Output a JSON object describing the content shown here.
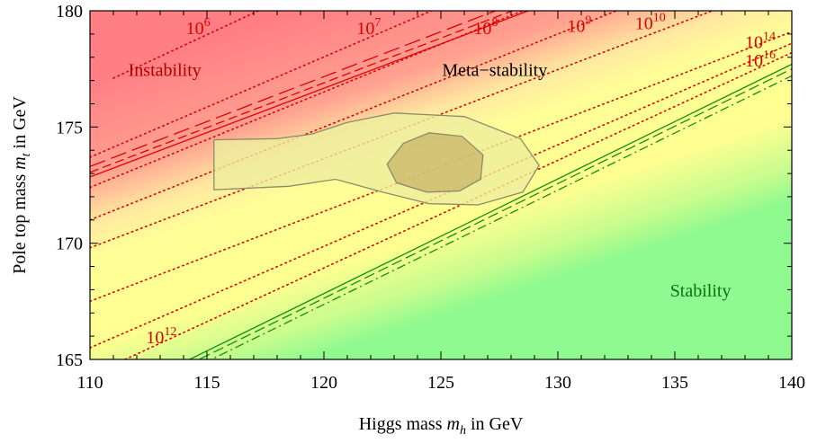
{
  "chart_data": {
    "type": "line",
    "xlabel": {
      "text": "Higgs mass ",
      "var": "m",
      "sub": "h",
      "unit": " in GeV"
    },
    "ylabel": {
      "text": "Pole top mass ",
      "var": "m",
      "sub": "t",
      "unit": " in GeV"
    },
    "xlim": [
      110,
      140
    ],
    "ylim": [
      165,
      180
    ],
    "xticks": [
      110,
      115,
      120,
      125,
      130,
      135,
      140
    ],
    "yticks": [
      165,
      170,
      175,
      180
    ],
    "grid": false,
    "regions": [
      {
        "label": "Instability",
        "color": "#b00000"
      },
      {
        "label": "Meta−stability",
        "color": "#000000"
      },
      {
        "label": "Stability",
        "color": "#107010"
      }
    ],
    "colors": {
      "instability": "#ff7f85",
      "metastability": "#ffff96",
      "stability": "#8ffa8f",
      "scale_lines": "#e00000",
      "boundary_instability": "#e00000",
      "boundary_stability": "#109010",
      "ellipse_fill": "#c8b46a",
      "ellipse_edge": "#8c8c6a"
    },
    "instability_boundary": {
      "solid": [
        [
          110,
          172.85
        ],
        [
          140,
          184.3
        ]
      ],
      "dashed": [
        [
          110,
          173.05
        ],
        [
          140,
          184.6
        ]
      ],
      "longdash": [
        [
          110,
          173.3
        ],
        [
          140,
          184.9
        ]
      ]
    },
    "stability_boundary": {
      "solid": [
        [
          110,
          162.9
        ],
        [
          140,
          177.7
        ]
      ],
      "dashed": [
        [
          110,
          162.7
        ],
        [
          140,
          177.5
        ]
      ],
      "dotdash": [
        [
          110,
          162.45
        ],
        [
          140,
          177.2
        ]
      ]
    },
    "scale_lines": [
      {
        "base": "10",
        "exp": "6",
        "points": [
          [
            111.0,
            177.1
          ],
          [
            117.2,
            180.0
          ]
        ]
      },
      {
        "base": "10",
        "exp": "7",
        "points": [
          [
            110.0,
            173.7
          ],
          [
            124.6,
            180.0
          ]
        ]
      },
      {
        "base": "10",
        "exp": "8",
        "points": [
          [
            110.0,
            172.4
          ],
          [
            128.5,
            180.0
          ]
        ]
      },
      {
        "base": "10",
        "exp": "9",
        "points": [
          [
            110.0,
            171.0
          ],
          [
            132.5,
            180.0
          ]
        ]
      },
      {
        "base": "10",
        "exp": "10",
        "points": [
          [
            110.0,
            169.8
          ],
          [
            136.6,
            180.0
          ]
        ]
      },
      {
        "base": "10",
        "exp": "12",
        "points": [
          [
            110.0,
            167.5
          ],
          [
            140.0,
            179.1
          ]
        ]
      },
      {
        "base": "10",
        "exp": "14",
        "points": [
          [
            110.0,
            165.5
          ],
          [
            140.0,
            178.6
          ]
        ]
      },
      {
        "base": "10",
        "exp": "16",
        "points": [
          [
            111.5,
            165.0
          ],
          [
            140.0,
            178.2
          ]
        ]
      }
    ],
    "scale_labels": [
      {
        "exp": "6",
        "x": 114.1,
        "y": 179.0
      },
      {
        "exp": "7",
        "x": 121.4,
        "y": 179.0
      },
      {
        "exp": "8",
        "x": 126.4,
        "y": 179.0
      },
      {
        "exp": "9",
        "x": 130.4,
        "y": 179.1
      },
      {
        "exp": "10",
        "x": 133.3,
        "y": 179.2
      },
      {
        "exp": "12",
        "x": 112.4,
        "y": 165.7
      },
      {
        "exp": "14",
        "x": 138.0,
        "y": 178.4
      },
      {
        "exp": "16",
        "x": 138.0,
        "y": 177.6
      }
    ],
    "region_label_positions": [
      {
        "x": 113.2,
        "y": 177.2
      },
      {
        "x": 127.3,
        "y": 177.2
      },
      {
        "x": 136.1,
        "y": 167.7
      }
    ],
    "contour_outer": [
      [
        115.3,
        174.45
      ],
      [
        118.0,
        174.5
      ],
      [
        119.5,
        174.7
      ],
      [
        121.0,
        175.2
      ],
      [
        123.0,
        175.6
      ],
      [
        126.0,
        175.45
      ],
      [
        128.4,
        174.5
      ],
      [
        129.2,
        173.35
      ],
      [
        128.5,
        172.2
      ],
      [
        126.6,
        171.65
      ],
      [
        124.5,
        171.7
      ],
      [
        122.5,
        172.2
      ],
      [
        120.5,
        172.75
      ],
      [
        118.5,
        172.45
      ],
      [
        115.3,
        172.3
      ]
    ],
    "contour_inner": [
      [
        122.7,
        173.4
      ],
      [
        123.4,
        174.3
      ],
      [
        124.5,
        174.75
      ],
      [
        125.9,
        174.6
      ],
      [
        126.8,
        173.8
      ],
      [
        126.7,
        172.75
      ],
      [
        125.8,
        172.25
      ],
      [
        124.4,
        172.2
      ],
      [
        123.1,
        172.6
      ],
      [
        122.7,
        173.4
      ]
    ]
  }
}
